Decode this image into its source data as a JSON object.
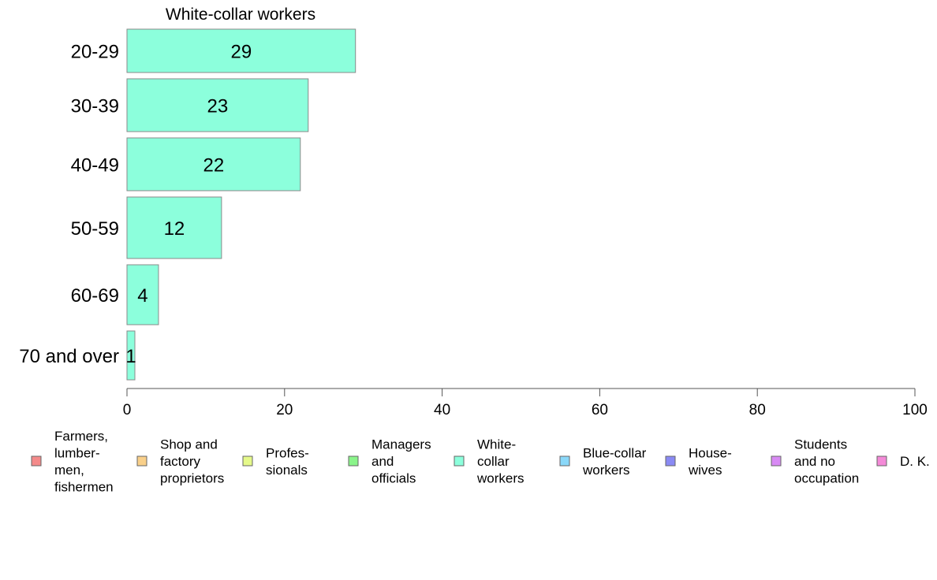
{
  "chart_data": {
    "type": "bar",
    "orientation": "horizontal",
    "title": "White-collar workers",
    "categories": [
      "20-29",
      "30-39",
      "40-49",
      "50-59",
      "60-69",
      "70 and over"
    ],
    "values": [
      29,
      23,
      22,
      12,
      4,
      1
    ],
    "xlim": [
      0,
      100
    ],
    "xticks": [
      "0",
      "20",
      "40",
      "60",
      "80",
      "100"
    ],
    "xlabel": "",
    "ylabel": "",
    "grid": false,
    "legend_position": "bottom",
    "bar_color": "#8cffdc",
    "legend": [
      {
        "lines": [
          "Farmers,",
          "lumber-",
          "men,",
          "fishermen"
        ],
        "color": "#f48a8a"
      },
      {
        "lines": [
          "Shop and",
          "factory",
          "proprietors"
        ],
        "color": "#f9d08a"
      },
      {
        "lines": [
          "Profes-",
          "sionals"
        ],
        "color": "#e5f98a"
      },
      {
        "lines": [
          "Managers",
          "and",
          "officials"
        ],
        "color": "#8af48a"
      },
      {
        "lines": [
          "White-",
          "collar",
          "workers"
        ],
        "color": "#8cffdc"
      },
      {
        "lines": [
          "Blue-collar",
          "workers"
        ],
        "color": "#8ad8f9"
      },
      {
        "lines": [
          "House-",
          "wives"
        ],
        "color": "#8a8af4"
      },
      {
        "lines": [
          "Students",
          "and no",
          "occupation"
        ],
        "color": "#d88af4"
      },
      {
        "lines": [
          "D. K."
        ],
        "color": "#f48ad8"
      }
    ]
  }
}
